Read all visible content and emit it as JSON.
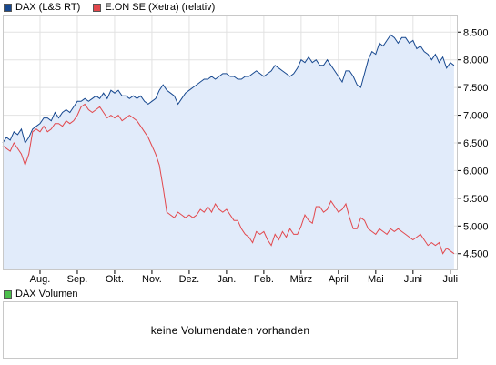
{
  "legend": {
    "dax": "DAX (L&S RT)",
    "eon": "E.ON SE (Xetra) (relativ)"
  },
  "colors": {
    "dax_line": "#17488f",
    "dax_fill": "#e1ebfa",
    "eon_line": "#e2474c",
    "volume_swatch": "#4cbf4c",
    "grid": "#e2e2e2"
  },
  "volume": {
    "label": "DAX Volumen",
    "message": "keine Volumendaten vorhanden"
  },
  "chart_data": {
    "type": "line",
    "ylim": [
      4200,
      8800
    ],
    "yticks": [
      4500,
      5000,
      5500,
      6000,
      6500,
      7000,
      7500,
      8000,
      8500
    ],
    "ytick_labels": [
      "4.500",
      "5.000",
      "5.500",
      "6.000",
      "6.500",
      "7.000",
      "7.500",
      "8.000",
      "8.500"
    ],
    "xlim": [
      0,
      12.2
    ],
    "xticks": [
      1,
      2,
      3,
      4,
      5,
      6,
      7,
      8,
      9,
      10,
      11,
      12
    ],
    "xtick_labels": [
      "Aug.",
      "Sep.",
      "Okt.",
      "Nov.",
      "Dez.",
      "Jan.",
      "Feb.",
      "März",
      "April",
      "Mai",
      "Juni",
      "Juli"
    ],
    "series": [
      {
        "name": "DAX (L&S RT)",
        "x": [
          0,
          0.1,
          0.2,
          0.3,
          0.4,
          0.5,
          0.6,
          0.7,
          0.8,
          0.9,
          1.0,
          1.1,
          1.2,
          1.3,
          1.4,
          1.5,
          1.6,
          1.7,
          1.8,
          1.9,
          2.0,
          2.1,
          2.2,
          2.3,
          2.4,
          2.5,
          2.6,
          2.7,
          2.8,
          2.9,
          3.0,
          3.1,
          3.2,
          3.3,
          3.4,
          3.5,
          3.6,
          3.7,
          3.8,
          3.9,
          4.0,
          4.1,
          4.2,
          4.3,
          4.4,
          4.5,
          4.6,
          4.7,
          4.8,
          4.9,
          5.0,
          5.1,
          5.2,
          5.3,
          5.4,
          5.5,
          5.6,
          5.7,
          5.8,
          5.9,
          6.0,
          6.1,
          6.2,
          6.3,
          6.4,
          6.5,
          6.6,
          6.7,
          6.8,
          6.9,
          7.0,
          7.1,
          7.2,
          7.3,
          7.4,
          7.5,
          7.6,
          7.7,
          7.8,
          7.9,
          8.0,
          8.1,
          8.2,
          8.3,
          8.4,
          8.5,
          8.6,
          8.7,
          8.8,
          8.9,
          9.0,
          9.1,
          9.2,
          9.3,
          9.4,
          9.5,
          9.6,
          9.7,
          9.8,
          9.9,
          10.0,
          10.1,
          10.2,
          10.3,
          10.4,
          10.5,
          10.6,
          10.7,
          10.8,
          10.9,
          11.0,
          11.1,
          11.2,
          11.3,
          11.4,
          11.5,
          11.6,
          11.7,
          11.8,
          11.9,
          12.0,
          12.1
        ],
        "values": [
          6500,
          6600,
          6550,
          6700,
          6650,
          6750,
          6500,
          6600,
          6750,
          6800,
          6850,
          6950,
          6950,
          6900,
          7050,
          6950,
          7050,
          7100,
          7050,
          7150,
          7250,
          7250,
          7300,
          7250,
          7300,
          7350,
          7300,
          7400,
          7300,
          7450,
          7400,
          7450,
          7350,
          7350,
          7300,
          7350,
          7300,
          7350,
          7250,
          7200,
          7250,
          7300,
          7450,
          7550,
          7450,
          7400,
          7350,
          7200,
          7300,
          7400,
          7450,
          7500,
          7550,
          7600,
          7650,
          7650,
          7700,
          7650,
          7700,
          7750,
          7750,
          7700,
          7700,
          7650,
          7650,
          7700,
          7700,
          7750,
          7800,
          7750,
          7700,
          7750,
          7800,
          7900,
          7850,
          7800,
          7750,
          7700,
          7750,
          7850,
          8000,
          7950,
          8050,
          7950,
          8000,
          7900,
          7900,
          8000,
          7900,
          7800,
          7700,
          7600,
          7800,
          7800,
          7700,
          7550,
          7500,
          7750,
          8000,
          8150,
          8100,
          8300,
          8250,
          8350,
          8450,
          8400,
          8300,
          8400,
          8400,
          8300,
          8350,
          8200,
          8250,
          8150,
          8100,
          8000,
          8100,
          7950,
          8050,
          7850,
          7950,
          7900
        ]
      },
      {
        "name": "E.ON SE (Xetra) (relativ)",
        "x": [
          0,
          0.1,
          0.2,
          0.3,
          0.4,
          0.5,
          0.6,
          0.7,
          0.8,
          0.9,
          1.0,
          1.1,
          1.2,
          1.3,
          1.4,
          1.5,
          1.6,
          1.7,
          1.8,
          1.9,
          2.0,
          2.1,
          2.2,
          2.3,
          2.4,
          2.5,
          2.6,
          2.7,
          2.8,
          2.9,
          3.0,
          3.1,
          3.2,
          3.3,
          3.4,
          3.5,
          3.6,
          3.7,
          3.8,
          3.9,
          4.0,
          4.1,
          4.2,
          4.3,
          4.4,
          4.5,
          4.6,
          4.7,
          4.8,
          4.9,
          5.0,
          5.1,
          5.2,
          5.3,
          5.4,
          5.5,
          5.6,
          5.7,
          5.8,
          5.9,
          6.0,
          6.1,
          6.2,
          6.3,
          6.4,
          6.5,
          6.6,
          6.7,
          6.8,
          6.9,
          7.0,
          7.1,
          7.2,
          7.3,
          7.4,
          7.5,
          7.6,
          7.7,
          7.8,
          7.9,
          8.0,
          8.1,
          8.2,
          8.3,
          8.4,
          8.5,
          8.6,
          8.7,
          8.8,
          8.9,
          9.0,
          9.1,
          9.2,
          9.3,
          9.4,
          9.5,
          9.6,
          9.7,
          9.8,
          9.9,
          10.0,
          10.1,
          10.2,
          10.3,
          10.4,
          10.5,
          10.6,
          10.7,
          10.8,
          10.9,
          11.0,
          11.1,
          11.2,
          11.3,
          11.4,
          11.5,
          11.6,
          11.7,
          11.8,
          11.9,
          12.0,
          12.1
        ],
        "values": [
          6450,
          6400,
          6350,
          6500,
          6400,
          6300,
          6100,
          6300,
          6700,
          6750,
          6700,
          6800,
          6700,
          6750,
          6850,
          6850,
          6800,
          6900,
          6850,
          6900,
          7000,
          7150,
          7200,
          7100,
          7050,
          7100,
          7150,
          7050,
          6950,
          7000,
          6950,
          7000,
          6900,
          6950,
          7000,
          6950,
          6900,
          6800,
          6700,
          6600,
          6450,
          6300,
          6100,
          5700,
          5250,
          5200,
          5150,
          5250,
          5200,
          5150,
          5200,
          5150,
          5200,
          5300,
          5250,
          5350,
          5250,
          5400,
          5300,
          5250,
          5300,
          5200,
          5100,
          5100,
          4950,
          4850,
          4800,
          4700,
          4900,
          4850,
          4900,
          4750,
          4650,
          4850,
          4750,
          4900,
          4800,
          4950,
          4850,
          4850,
          5000,
          5200,
          5100,
          5050,
          5350,
          5350,
          5250,
          5300,
          5450,
          5350,
          5250,
          5300,
          5400,
          5150,
          4950,
          4950,
          5150,
          5100,
          4950,
          4900,
          4850,
          4950,
          4900,
          4850,
          4950,
          4900,
          4950,
          4900,
          4850,
          4800,
          4750,
          4800,
          4850,
          4750,
          4650,
          4700,
          4650,
          4700,
          4500,
          4600,
          4550,
          4500
        ]
      }
    ],
    "grid": true,
    "area_fill_series": "DAX (L&S RT)"
  }
}
